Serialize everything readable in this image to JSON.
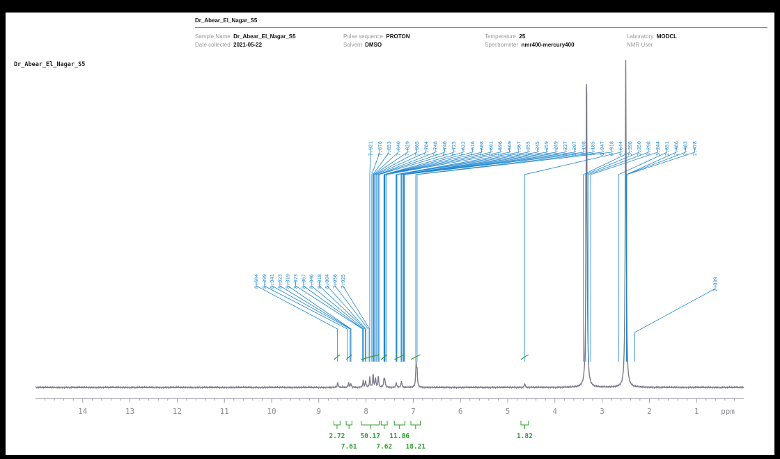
{
  "header": {
    "title": "Dr_Abear_El_Nagar_S5",
    "fields": [
      {
        "label": "Sample Name",
        "value": "Dr_Abear_El_Nagar_S5"
      },
      {
        "label": "Date collected",
        "value": "2021-05-22"
      },
      {
        "label": "Pulse sequence",
        "value": "PROTON"
      },
      {
        "label": "Solvent",
        "value": "DMSO"
      },
      {
        "label": "Temperature",
        "value": "25"
      },
      {
        "label": "Spectrometer",
        "value": "nmr400-mercury400"
      },
      {
        "label": "Laboratory",
        "value": "MODCL"
      },
      {
        "label": "NMR User",
        "value": ""
      }
    ]
  },
  "side_label": "Dr_Abear_El_Nagar_S5",
  "colors": {
    "spectrum": "#7a7a8c",
    "peak_labels": "#1f86cf",
    "integrals": "#2f9e2f",
    "axis": "#8a8a96"
  },
  "chart_data": {
    "type": "line",
    "xlabel": "ppm",
    "xlim": [
      15,
      0
    ],
    "x_ticks": [
      14,
      13,
      12,
      11,
      10,
      9,
      8,
      7,
      6,
      5,
      4,
      3,
      2,
      1
    ],
    "grid": false,
    "spectrum_peaks": [
      {
        "ppm": 8.6,
        "h": 0.015
      },
      {
        "ppm": 8.37,
        "h": 0.015
      },
      {
        "ppm": 8.32,
        "h": 0.012
      },
      {
        "ppm": 8.06,
        "h": 0.02
      },
      {
        "ppm": 8.01,
        "h": 0.02
      },
      {
        "ppm": 7.92,
        "h": 0.03
      },
      {
        "ppm": 7.85,
        "h": 0.04
      },
      {
        "ppm": 7.8,
        "h": 0.03
      },
      {
        "ppm": 7.74,
        "h": 0.035
      },
      {
        "ppm": 7.62,
        "h": 0.025
      },
      {
        "ppm": 7.6,
        "h": 0.02
      },
      {
        "ppm": 7.36,
        "h": 0.015
      },
      {
        "ppm": 7.25,
        "h": 0.02
      },
      {
        "ppm": 6.94,
        "h": 0.07
      },
      {
        "ppm": 6.92,
        "h": 0.05
      },
      {
        "ppm": 4.64,
        "h": 0.012
      },
      {
        "ppm": 3.33,
        "h": 1.0
      },
      {
        "ppm": 2.5,
        "h": 1.0
      }
    ],
    "peak_groups": [
      {
        "name": "left",
        "labels": [
          "8.604",
          "8.399",
          "8.341",
          "8.323",
          "8.319",
          "8.073",
          "8.067",
          "8.046",
          "8.018",
          "8.004",
          "7.956",
          "7.925"
        ],
        "positions": [
          8.604,
          8.399,
          8.341,
          8.323,
          8.319,
          8.073,
          8.067,
          8.046,
          8.018,
          8.004,
          7.956,
          7.925
        ]
      },
      {
        "name": "center",
        "labels": [
          "7.921",
          "7.878",
          "7.853",
          "7.840",
          "7.829",
          "7.805",
          "7.784",
          "7.748",
          "7.740",
          "7.725",
          "7.622",
          "7.616",
          "7.608",
          "7.601",
          "7.596",
          "7.569",
          "7.367",
          "7.355",
          "7.345",
          "7.259",
          "7.249",
          "7.237",
          "7.207",
          "7.198",
          "7.185",
          "6.947",
          "6.918",
          "4.644",
          "3.398",
          "3.350",
          "3.298",
          "3.244",
          "2.651",
          "2.486",
          "2.483",
          "2.478"
        ],
        "positions": [
          7.921,
          7.878,
          7.853,
          7.84,
          7.829,
          7.805,
          7.784,
          7.748,
          7.74,
          7.725,
          7.622,
          7.616,
          7.608,
          7.601,
          7.596,
          7.569,
          7.367,
          7.355,
          7.345,
          7.259,
          7.249,
          7.237,
          7.207,
          7.198,
          7.185,
          6.947,
          6.918,
          4.644,
          3.398,
          3.35,
          3.298,
          3.244,
          2.651,
          2.486,
          2.483,
          2.478
        ]
      },
      {
        "name": "right",
        "labels": [
          "2.309"
        ],
        "positions": [
          2.309
        ]
      }
    ],
    "integrals": [
      {
        "from": 8.68,
        "to": 8.55,
        "value": "2.72",
        "row": 0
      },
      {
        "from": 8.42,
        "to": 8.3,
        "value": "7.61",
        "row": 1
      },
      {
        "from": 8.1,
        "to": 7.72,
        "value": "50.17",
        "row": 0
      },
      {
        "from": 7.68,
        "to": 7.55,
        "value": "7.62",
        "row": 1
      },
      {
        "from": 7.4,
        "to": 7.18,
        "value": "11.86",
        "row": 0
      },
      {
        "from": 7.05,
        "to": 6.85,
        "value": "18.21",
        "row": 1
      },
      {
        "from": 4.72,
        "to": 4.56,
        "value": "1.82",
        "row": 0
      }
    ]
  }
}
